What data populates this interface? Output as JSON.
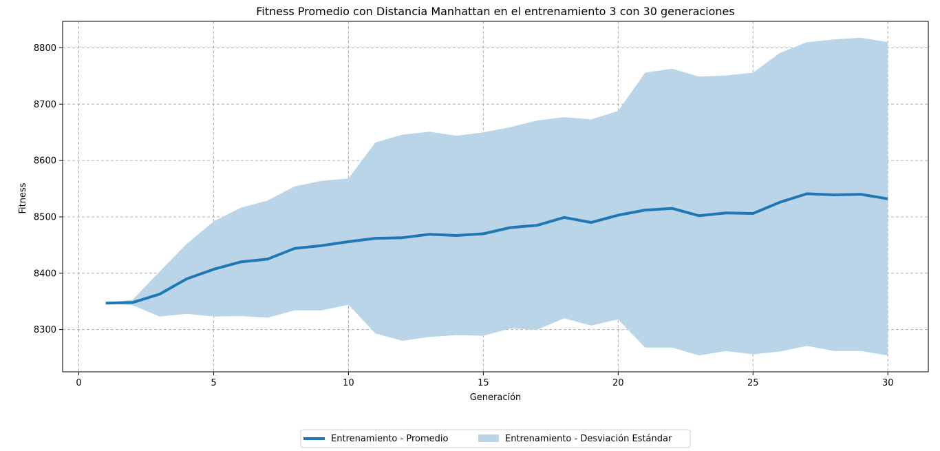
{
  "chart_data": {
    "type": "line",
    "title": "Fitness Promedio con Distancia Manhattan en el entrenamiento 3 con 30 generaciones",
    "xlabel": "Generación",
    "ylabel": "Fitness",
    "xlim": [
      -0.6,
      31.5
    ],
    "ylim": [
      8225,
      8847
    ],
    "xticks": [
      0,
      5,
      10,
      15,
      20,
      25,
      30
    ],
    "xtick_labels": [
      "0",
      "5",
      "10",
      "15",
      "20",
      "25",
      "30"
    ],
    "yticks": [
      8300,
      8400,
      8500,
      8600,
      8700,
      8800
    ],
    "ytick_labels": [
      "8300",
      "8400",
      "8500",
      "8600",
      "8700",
      "8800"
    ],
    "grid": true,
    "legend_position": "bottom-center",
    "colors": {
      "line": "#1f77b4",
      "band": "#bad5e8",
      "grid": "#b0b0b0"
    },
    "x": [
      1,
      2,
      3,
      4,
      5,
      6,
      7,
      8,
      9,
      10,
      11,
      12,
      13,
      14,
      15,
      16,
      17,
      18,
      19,
      20,
      21,
      22,
      23,
      24,
      25,
      26,
      27,
      28,
      29,
      30
    ],
    "series": [
      {
        "name": "Entrenamiento  - Promedio",
        "values": [
          8347,
          8348,
          8363,
          8390,
          8407,
          8420,
          8425,
          8444,
          8449,
          8456,
          8462,
          8463,
          8469,
          8467,
          8470,
          8481,
          8485,
          8499,
          8490,
          8503,
          8512,
          8515,
          8502,
          8507,
          8506,
          8526,
          8541,
          8539,
          8540,
          8532
        ]
      }
    ],
    "band": {
      "name": "Entrenamiento  - Desviación Estándar",
      "upper": [
        8347,
        8353,
        8403,
        8452,
        8492,
        8516,
        8529,
        8554,
        8564,
        8568,
        8632,
        8646,
        8651,
        8644,
        8650,
        8659,
        8671,
        8677,
        8673,
        8688,
        8756,
        8763,
        8749,
        8751,
        8756,
        8791,
        8810,
        8815,
        8818,
        8810
      ],
      "lower": [
        8347,
        8343,
        8323,
        8328,
        8323,
        8324,
        8321,
        8334,
        8334,
        8344,
        8293,
        8280,
        8287,
        8290,
        8289,
        8302,
        8300,
        8320,
        8307,
        8318,
        8268,
        8268,
        8254,
        8262,
        8256,
        8261,
        8271,
        8262,
        8262,
        8254
      ]
    }
  }
}
